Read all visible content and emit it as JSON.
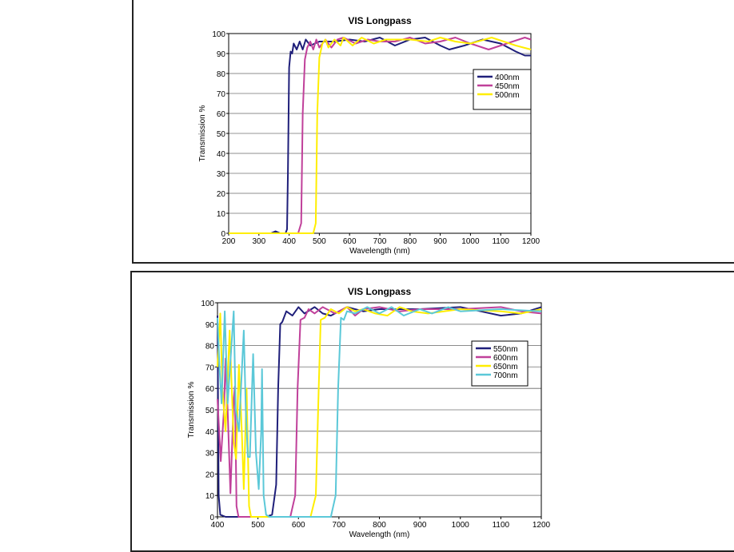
{
  "chart_data": [
    {
      "type": "line",
      "title": "VIS Longpass",
      "xlabel": "Wavelength (nm)",
      "ylabel": "Transmission %",
      "xlim": [
        200,
        1200
      ],
      "ylim": [
        0,
        100
      ],
      "xticks": [
        200,
        300,
        400,
        500,
        600,
        700,
        800,
        900,
        1000,
        1100,
        1200
      ],
      "yticks": [
        0,
        10,
        20,
        30,
        40,
        50,
        60,
        70,
        80,
        90,
        100
      ],
      "grid": true,
      "legend": "right",
      "series": [
        {
          "name": "400nm",
          "color": "#1f1f7a",
          "points": [
            [
              200,
              0
            ],
            [
              340,
              0
            ],
            [
              355,
              1
            ],
            [
              370,
              0
            ],
            [
              388,
              0
            ],
            [
              393,
              2
            ],
            [
              396,
              30
            ],
            [
              400,
              83
            ],
            [
              405,
              91
            ],
            [
              410,
              90
            ],
            [
              415,
              95
            ],
            [
              425,
              92
            ],
            [
              435,
              96
            ],
            [
              445,
              92
            ],
            [
              455,
              97
            ],
            [
              470,
              94
            ],
            [
              500,
              96
            ],
            [
              550,
              96
            ],
            [
              600,
              97
            ],
            [
              650,
              96
            ],
            [
              700,
              98
            ],
            [
              750,
              94
            ],
            [
              800,
              97
            ],
            [
              850,
              98
            ],
            [
              900,
              94
            ],
            [
              930,
              92
            ],
            [
              980,
              94
            ],
            [
              1040,
              97
            ],
            [
              1100,
              95
            ],
            [
              1150,
              91
            ],
            [
              1180,
              89
            ],
            [
              1200,
              89
            ]
          ]
        },
        {
          "name": "450nm",
          "color": "#c0409a",
          "points": [
            [
              200,
              0
            ],
            [
              430,
              0
            ],
            [
              440,
              5
            ],
            [
              445,
              60
            ],
            [
              452,
              87
            ],
            [
              460,
              93
            ],
            [
              470,
              96
            ],
            [
              480,
              92
            ],
            [
              490,
              97
            ],
            [
              500,
              93
            ],
            [
              520,
              97
            ],
            [
              540,
              93
            ],
            [
              560,
              97
            ],
            [
              580,
              98
            ],
            [
              620,
              95
            ],
            [
              660,
              97
            ],
            [
              700,
              96
            ],
            [
              750,
              96
            ],
            [
              800,
              98
            ],
            [
              850,
              95
            ],
            [
              900,
              96
            ],
            [
              950,
              98
            ],
            [
              1000,
              95
            ],
            [
              1060,
              92
            ],
            [
              1120,
              95
            ],
            [
              1180,
              98
            ],
            [
              1200,
              97
            ]
          ]
        },
        {
          "name": "500nm",
          "color": "#ffee00",
          "points": [
            [
              200,
              0
            ],
            [
              480,
              0
            ],
            [
              488,
              5
            ],
            [
              493,
              60
            ],
            [
              500,
              88
            ],
            [
              510,
              95
            ],
            [
              520,
              97
            ],
            [
              530,
              93
            ],
            [
              550,
              97
            ],
            [
              570,
              94
            ],
            [
              580,
              98
            ],
            [
              610,
              94
            ],
            [
              640,
              98
            ],
            [
              680,
              95
            ],
            [
              720,
              97
            ],
            [
              800,
              97
            ],
            [
              860,
              96
            ],
            [
              900,
              98
            ],
            [
              950,
              96
            ],
            [
              1000,
              95
            ],
            [
              1070,
              98
            ],
            [
              1150,
              94
            ],
            [
              1200,
              92
            ]
          ]
        }
      ]
    },
    {
      "type": "line",
      "title": "VIS Longpass",
      "xlabel": "Wavelength (nm)",
      "ylabel": "Transmission %",
      "xlim": [
        400,
        1200
      ],
      "ylim": [
        0,
        100
      ],
      "xticks": [
        400,
        500,
        600,
        700,
        800,
        900,
        1000,
        1100,
        1200
      ],
      "yticks": [
        0,
        10,
        20,
        30,
        40,
        50,
        60,
        70,
        80,
        90,
        100
      ],
      "grid": true,
      "legend": "right",
      "series": [
        {
          "name": "550nm",
          "color": "#1f1f7a",
          "points": [
            [
              400,
              94
            ],
            [
              403,
              10
            ],
            [
              407,
              1
            ],
            [
              420,
              0
            ],
            [
              520,
              0
            ],
            [
              535,
              1
            ],
            [
              545,
              15
            ],
            [
              550,
              60
            ],
            [
              555,
              90
            ],
            [
              560,
              91
            ],
            [
              570,
              96
            ],
            [
              585,
              94
            ],
            [
              600,
              98
            ],
            [
              615,
              95
            ],
            [
              640,
              98
            ],
            [
              660,
              95
            ],
            [
              680,
              94
            ],
            [
              720,
              98
            ],
            [
              760,
              96
            ],
            [
              800,
              97
            ],
            [
              900,
              97
            ],
            [
              1000,
              98
            ],
            [
              1050,
              96
            ],
            [
              1100,
              94
            ],
            [
              1150,
              95
            ],
            [
              1200,
              98
            ]
          ]
        },
        {
          "name": "600nm",
          "color": "#c0409a",
          "points": [
            [
              400,
              55
            ],
            [
              408,
              26
            ],
            [
              416,
              50
            ],
            [
              420,
              74
            ],
            [
              425,
              50
            ],
            [
              432,
              11
            ],
            [
              440,
              55
            ],
            [
              443,
              61
            ],
            [
              447,
              5
            ],
            [
              452,
              0
            ],
            [
              580,
              0
            ],
            [
              592,
              10
            ],
            [
              598,
              60
            ],
            [
              605,
              92
            ],
            [
              615,
              93
            ],
            [
              625,
              97
            ],
            [
              640,
              95
            ],
            [
              660,
              98
            ],
            [
              690,
              95
            ],
            [
              720,
              98
            ],
            [
              740,
              94
            ],
            [
              760,
              97
            ],
            [
              800,
              98
            ],
            [
              850,
              96
            ],
            [
              900,
              97
            ],
            [
              1000,
              97
            ],
            [
              1100,
              98
            ],
            [
              1150,
              96
            ],
            [
              1200,
              95
            ]
          ]
        },
        {
          "name": "650nm",
          "color": "#ffee00",
          "points": [
            [
              400,
              70
            ],
            [
              407,
              95
            ],
            [
              412,
              60
            ],
            [
              420,
              40
            ],
            [
              430,
              87
            ],
            [
              440,
              35
            ],
            [
              446,
              27
            ],
            [
              453,
              71
            ],
            [
              460,
              40
            ],
            [
              465,
              13
            ],
            [
              472,
              60
            ],
            [
              478,
              5
            ],
            [
              483,
              0
            ],
            [
              630,
              0
            ],
            [
              643,
              10
            ],
            [
              650,
              60
            ],
            [
              655,
              92
            ],
            [
              665,
              93
            ],
            [
              680,
              97
            ],
            [
              700,
              95
            ],
            [
              720,
              98
            ],
            [
              740,
              96
            ],
            [
              760,
              97
            ],
            [
              790,
              95
            ],
            [
              820,
              94
            ],
            [
              850,
              98
            ],
            [
              880,
              96
            ],
            [
              920,
              95
            ],
            [
              1000,
              97
            ],
            [
              1100,
              96
            ],
            [
              1150,
              95
            ],
            [
              1200,
              97
            ]
          ]
        },
        {
          "name": "700nm",
          "color": "#5bc8d8",
          "points": [
            [
              400,
              93
            ],
            [
              405,
              70
            ],
            [
              410,
              53
            ],
            [
              418,
              96
            ],
            [
              425,
              53
            ],
            [
              440,
              96
            ],
            [
              445,
              50
            ],
            [
              453,
              40
            ],
            [
              465,
              87
            ],
            [
              470,
              50
            ],
            [
              475,
              28
            ],
            [
              480,
              28
            ],
            [
              488,
              76
            ],
            [
              495,
              30
            ],
            [
              502,
              13
            ],
            [
              508,
              40
            ],
            [
              510,
              69
            ],
            [
              514,
              10
            ],
            [
              520,
              1
            ],
            [
              528,
              0
            ],
            [
              680,
              0
            ],
            [
              692,
              10
            ],
            [
              698,
              60
            ],
            [
              705,
              93
            ],
            [
              712,
              92
            ],
            [
              720,
              96
            ],
            [
              740,
              95
            ],
            [
              770,
              98
            ],
            [
              800,
              95
            ],
            [
              830,
              98
            ],
            [
              860,
              94
            ],
            [
              900,
              97
            ],
            [
              930,
              95
            ],
            [
              970,
              98
            ],
            [
              1000,
              96
            ],
            [
              1100,
              97
            ],
            [
              1200,
              96
            ]
          ]
        }
      ]
    }
  ]
}
